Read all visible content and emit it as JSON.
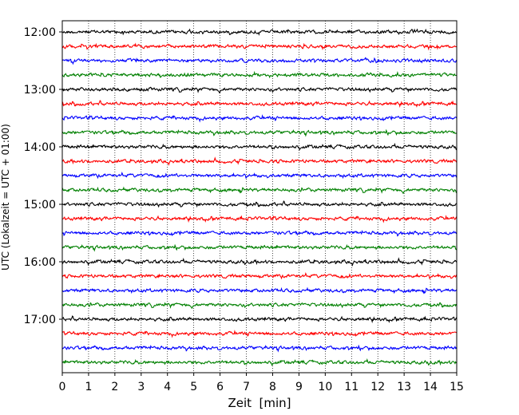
{
  "chart_data": {
    "type": "line",
    "title": "",
    "xlabel": "Zeit  [min]",
    "ylabel": "UTC (Lokalzeit = UTC + 01:00)",
    "x_ticks": [
      "0",
      "1",
      "2",
      "3",
      "4",
      "5",
      "6",
      "7",
      "8",
      "9",
      "10",
      "11",
      "12",
      "13",
      "14",
      "15"
    ],
    "xlim": [
      0,
      15
    ],
    "y_ticks": [
      "12:00",
      "13:00",
      "14:00",
      "15:00",
      "16:00",
      "17:00"
    ],
    "grid": "vertical dotted",
    "trace_interval_minutes": 15,
    "start": "12:00",
    "end": "17:45",
    "trace_colors": [
      "#000000",
      "#ff0000",
      "#0000ff",
      "#008000"
    ],
    "traces": [
      {
        "time": "12:00",
        "color": "#000000"
      },
      {
        "time": "12:15",
        "color": "#ff0000"
      },
      {
        "time": "12:30",
        "color": "#0000ff"
      },
      {
        "time": "12:45",
        "color": "#008000"
      },
      {
        "time": "13:00",
        "color": "#000000"
      },
      {
        "time": "13:15",
        "color": "#ff0000"
      },
      {
        "time": "13:30",
        "color": "#0000ff"
      },
      {
        "time": "13:45",
        "color": "#008000"
      },
      {
        "time": "14:00",
        "color": "#000000"
      },
      {
        "time": "14:15",
        "color": "#ff0000"
      },
      {
        "time": "14:30",
        "color": "#0000ff"
      },
      {
        "time": "14:45",
        "color": "#008000"
      },
      {
        "time": "15:00",
        "color": "#000000"
      },
      {
        "time": "15:15",
        "color": "#ff0000"
      },
      {
        "time": "15:30",
        "color": "#0000ff"
      },
      {
        "time": "15:45",
        "color": "#008000"
      },
      {
        "time": "16:00",
        "color": "#000000"
      },
      {
        "time": "16:15",
        "color": "#ff0000"
      },
      {
        "time": "16:30",
        "color": "#0000ff"
      },
      {
        "time": "16:45",
        "color": "#008000"
      },
      {
        "time": "17:00",
        "color": "#000000"
      },
      {
        "time": "17:15",
        "color": "#ff0000"
      },
      {
        "time": "17:30",
        "color": "#0000ff"
      },
      {
        "time": "17:45",
        "color": "#008000"
      }
    ]
  }
}
